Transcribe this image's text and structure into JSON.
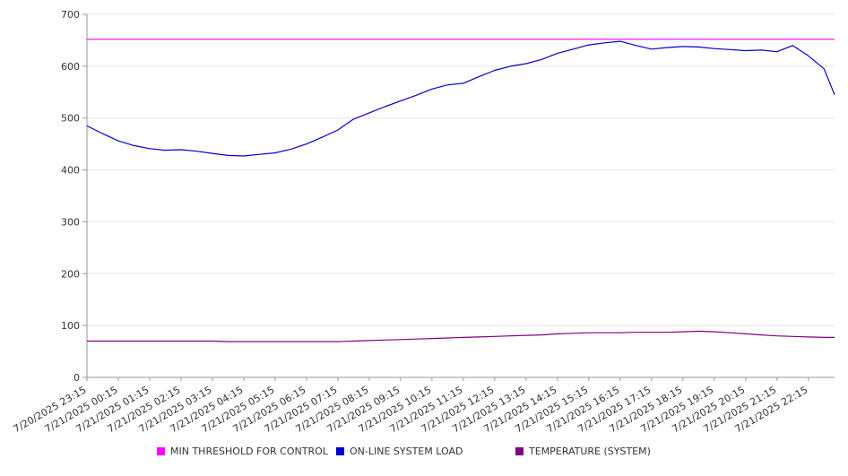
{
  "chart_data": {
    "type": "line",
    "title": "",
    "xlabel": "",
    "ylabel": "",
    "ylim": [
      0,
      700
    ],
    "yticks": [
      0,
      100,
      200,
      300,
      400,
      500,
      600,
      700
    ],
    "grid": true,
    "legend_position": "bottom",
    "x_tick_labels": [
      "7/20/2025 23:15",
      "7/21/2025 00:15",
      "7/21/2025 01:15",
      "7/21/2025 02:15",
      "7/21/2025 03:15",
      "7/21/2025 04:15",
      "7/21/2025 05:15",
      "7/21/2025 06:15",
      "7/21/2025 07:15",
      "7/21/2025 08:15",
      "7/21/2025 09:15",
      "7/21/2025 10:15",
      "7/21/2025 11:15",
      "7/21/2025 12:15",
      "7/21/2025 13:15",
      "7/21/2025 14:15",
      "7/21/2025 15:15",
      "7/21/2025 16:15",
      "7/21/2025 17:15",
      "7/21/2025 18:15",
      "7/21/2025 19:15",
      "7/21/2025 20:15",
      "7/21/2025 21:15",
      "7/21/2025 22:15"
    ],
    "x": [
      "7/20/2025 23:15",
      "7/20/2025 23:45",
      "7/21/2025 00:15",
      "7/21/2025 00:45",
      "7/21/2025 01:15",
      "7/21/2025 01:45",
      "7/21/2025 02:15",
      "7/21/2025 02:45",
      "7/21/2025 03:15",
      "7/21/2025 03:45",
      "7/21/2025 04:15",
      "7/21/2025 04:45",
      "7/21/2025 05:15",
      "7/21/2025 05:45",
      "7/21/2025 06:15",
      "7/21/2025 06:45",
      "7/21/2025 07:15",
      "7/21/2025 07:45",
      "7/21/2025 08:15",
      "7/21/2025 08:45",
      "7/21/2025 09:15",
      "7/21/2025 09:45",
      "7/21/2025 10:15",
      "7/21/2025 10:45",
      "7/21/2025 11:15",
      "7/21/2025 11:45",
      "7/21/2025 12:15",
      "7/21/2025 12:45",
      "7/21/2025 13:15",
      "7/21/2025 13:45",
      "7/21/2025 14:15",
      "7/21/2025 14:45",
      "7/21/2025 15:15",
      "7/21/2025 15:45",
      "7/21/2025 16:15",
      "7/21/2025 16:45",
      "7/21/2025 17:15",
      "7/21/2025 17:45",
      "7/21/2025 18:15",
      "7/21/2025 18:45",
      "7/21/2025 19:15",
      "7/21/2025 19:45",
      "7/21/2025 20:15",
      "7/21/2025 20:45",
      "7/21/2025 21:15",
      "7/21/2025 21:45",
      "7/21/2025 22:15",
      "7/21/2025 22:45",
      "7/21/2025 23:05"
    ],
    "series": [
      {
        "name": "MIN THRESHOLD FOR CONTROL",
        "color": "#ff00ff",
        "values": [
          652,
          652,
          652,
          652,
          652,
          652,
          652,
          652,
          652,
          652,
          652,
          652,
          652,
          652,
          652,
          652,
          652,
          652,
          652,
          652,
          652,
          652,
          652,
          652,
          652,
          652,
          652,
          652,
          652,
          652,
          652,
          652,
          652,
          652,
          652,
          652,
          652,
          652,
          652,
          652,
          652,
          652,
          652,
          652,
          652,
          652,
          652,
          652,
          652
        ]
      },
      {
        "name": "ON-LINE SYSTEM LOAD",
        "color": "#0000cc",
        "values": [
          485,
          470,
          456,
          447,
          441,
          438,
          439,
          436,
          432,
          428,
          427,
          430,
          433,
          440,
          450,
          463,
          477,
          498,
          510,
          522,
          533,
          544,
          556,
          564,
          567,
          580,
          592,
          600,
          605,
          613,
          625,
          633,
          641,
          645,
          648,
          640,
          633,
          636,
          638,
          637,
          634,
          632,
          630,
          631,
          628,
          640,
          620,
          595,
          545
        ]
      },
      {
        "name": "TEMPERATURE (SYSTEM)",
        "color": "#800080",
        "values": [
          70,
          70,
          70,
          70,
          70,
          70,
          70,
          70,
          70,
          69,
          69,
          69,
          69,
          69,
          69,
          69,
          69,
          70,
          71,
          72,
          73,
          74,
          75,
          76,
          77,
          78,
          79,
          80,
          81,
          82,
          84,
          85,
          86,
          86,
          86,
          87,
          87,
          87,
          88,
          89,
          88,
          86,
          84,
          82,
          80,
          79,
          78,
          77,
          77
        ]
      }
    ]
  }
}
